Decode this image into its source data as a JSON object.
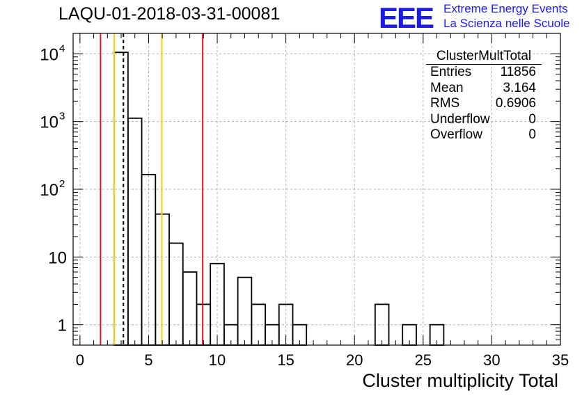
{
  "header": {
    "title": "LAQU-01-2018-03-31-00081",
    "logo_text": "EEE",
    "logo_line1": "Extreme Energy Events",
    "logo_line2": "La Scienza nelle Scuole"
  },
  "stats": {
    "title": "ClusterMultTotal",
    "rows": [
      {
        "label": "Entries",
        "value": "11856"
      },
      {
        "label": "Mean",
        "value": "3.164"
      },
      {
        "label": "RMS",
        "value": "0.6906"
      },
      {
        "label": "Underflow",
        "value": "0"
      },
      {
        "label": "Overflow",
        "value": "0"
      }
    ]
  },
  "chart_data": {
    "type": "histogram",
    "title": "LAQU-01-2018-03-31-00081",
    "xlabel": "Cluster multiplicity Total",
    "ylabel": "",
    "yscale": "log",
    "xlim": [
      -0.5,
      35
    ],
    "ylim": [
      0.5,
      20000
    ],
    "grid": true,
    "bin_width": 1,
    "bins": [
      {
        "x_low": 2.5,
        "count": 10500
      },
      {
        "x_low": 3.5,
        "count": 1120
      },
      {
        "x_low": 4.5,
        "count": 165
      },
      {
        "x_low": 5.5,
        "count": 43
      },
      {
        "x_low": 6.5,
        "count": 16
      },
      {
        "x_low": 7.5,
        "count": 6
      },
      {
        "x_low": 8.5,
        "count": 2
      },
      {
        "x_low": 9.5,
        "count": 8
      },
      {
        "x_low": 10.5,
        "count": 1
      },
      {
        "x_low": 11.5,
        "count": 5
      },
      {
        "x_low": 12.5,
        "count": 2
      },
      {
        "x_low": 13.5,
        "count": 1
      },
      {
        "x_low": 14.5,
        "count": 2
      },
      {
        "x_low": 15.5,
        "count": 1
      },
      {
        "x_low": 21.5,
        "count": 2
      },
      {
        "x_low": 23.5,
        "count": 1
      },
      {
        "x_low": 25.5,
        "count": 1
      }
    ],
    "x_ticks": [
      0,
      5,
      10,
      15,
      20,
      25,
      30,
      35
    ],
    "y_ticks": [
      {
        "value": 1,
        "label": "1"
      },
      {
        "value": 10,
        "label": "10"
      },
      {
        "value": 100,
        "label": "10",
        "exp": "2"
      },
      {
        "value": 1000,
        "label": "10",
        "exp": "3"
      },
      {
        "value": 10000,
        "label": "10",
        "exp": "4"
      }
    ],
    "vertical_lines": [
      {
        "x": 1.5,
        "color": "#e8141c",
        "style": "solid"
      },
      {
        "x": 2.5,
        "color": "#ffcc00",
        "style": "solid"
      },
      {
        "x": 3.164,
        "color": "#000000",
        "style": "dashed"
      },
      {
        "x": 5.96,
        "color": "#ffcc00",
        "style": "solid"
      },
      {
        "x": 8.94,
        "color": "#e8141c",
        "style": "solid"
      }
    ]
  }
}
